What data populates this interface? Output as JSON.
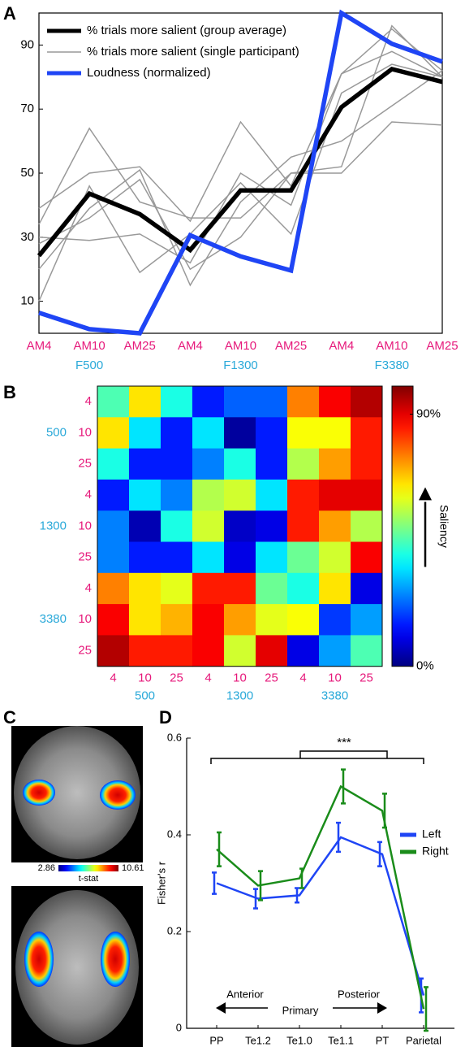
{
  "chart_data": [
    {
      "type": "line",
      "panel": "A",
      "categories": [
        "AM4",
        "AM10",
        "AM25",
        "AM4",
        "AM10",
        "AM25",
        "AM4",
        "AM10",
        "AM25"
      ],
      "category_color": "#e6197b",
      "group_labels": [
        "F500",
        "F1300",
        "F3380"
      ],
      "group_color": "#2aa9d9",
      "ylim": [
        0,
        100
      ],
      "yticks": [
        10,
        30,
        50,
        70,
        90
      ],
      "grid": false,
      "legend": "upper left",
      "series": [
        {
          "name": "% trials more salient (single participant)",
          "color": "#999999",
          "participants": [
            [
              39,
              50,
              52,
              35,
              66,
              46,
              81,
              95,
              82
            ],
            [
              30,
              29,
              31,
              22,
              50,
              40,
              81,
              88,
              80
            ],
            [
              20,
              39,
              51,
              15,
              41,
              55,
              60,
              71,
              82
            ],
            [
              34,
              64,
              41,
              36,
              36,
              50,
              52,
              96,
              80
            ],
            [
              10,
              46,
              19,
              31,
              47,
              31,
              75,
              84,
              80
            ],
            [
              28,
              36,
              48,
              20,
              30,
              50,
              50,
              66,
              65
            ]
          ]
        },
        {
          "name": "% trials more salient (group average)",
          "color": "#000000",
          "values": [
            24.2,
            43.6,
            37.2,
            26,
            44.6,
            44.6,
            70.6,
            82.5,
            78.5
          ]
        },
        {
          "name": "Loudness (normalized)",
          "color": "#1f45f5",
          "values": [
            6.4,
            1.3,
            0,
            30.6,
            24,
            19.6,
            100,
            90.4,
            84.8
          ]
        }
      ]
    },
    {
      "type": "heatmap",
      "panel": "B",
      "colormap": "jet",
      "rows": [
        "4",
        "10",
        "25",
        "4",
        "10",
        "25",
        "4",
        "10",
        "25"
      ],
      "columns": [
        "4",
        "10",
        "25",
        "4",
        "10",
        "25",
        "4",
        "10",
        "25"
      ],
      "category_color": "#e6197b",
      "group_labels": [
        "500",
        "1300",
        "3380"
      ],
      "group_color": "#2aa9d9",
      "z": [
        [
          45,
          65,
          40,
          15,
          22,
          22,
          75,
          88,
          95
        ],
        [
          65,
          35,
          15,
          35,
          3,
          15,
          62,
          62,
          85
        ],
        [
          40,
          15,
          15,
          25,
          40,
          15,
          55,
          72,
          85
        ],
        [
          15,
          35,
          25,
          55,
          58,
          35,
          85,
          90,
          90
        ],
        [
          25,
          5,
          40,
          58,
          7,
          10,
          85,
          72,
          55
        ],
        [
          25,
          15,
          15,
          35,
          10,
          35,
          48,
          58,
          88
        ],
        [
          75,
          65,
          60,
          85,
          85,
          48,
          40,
          65,
          10
        ],
        [
          88,
          65,
          70,
          88,
          72,
          60,
          62,
          18,
          28
        ],
        [
          95,
          85,
          85,
          88,
          58,
          90,
          10,
          28,
          45
        ]
      ],
      "clim": [
        0,
        100
      ],
      "cticks": [
        {
          "value": 90,
          "label": "90%"
        },
        {
          "value": 0,
          "label": "0%"
        }
      ],
      "colorbar_label": "Saliency"
    },
    {
      "type": "line",
      "panel": "D",
      "categories": [
        "PP",
        "Te1.2",
        "Te1.0",
        "Te1.1",
        "PT",
        "Parietal"
      ],
      "category_color": "#000000",
      "ylabel": "Fisher's r",
      "ylim": [
        0,
        0.6
      ],
      "yticks": [
        0,
        0.2,
        0.4,
        0.6
      ],
      "grid": false,
      "legend": "right",
      "annotations": {
        "significance": "***",
        "anterior": "Anterior",
        "primary": "Primary",
        "posterior": "Posterior"
      },
      "series": [
        {
          "name": "Left",
          "color": "#1f45f5",
          "values": [
            0.3,
            0.268,
            0.275,
            0.395,
            0.36,
            0.068
          ],
          "errors": [
            0.022,
            0.02,
            0.015,
            0.03,
            0.025,
            0.035
          ]
        },
        {
          "name": "Right",
          "color": "#1a8c1a",
          "values": [
            0.37,
            0.295,
            0.31,
            0.5,
            0.45,
            0.04
          ],
          "errors": [
            0.035,
            0.03,
            0.02,
            0.035,
            0.035,
            0.045
          ]
        }
      ]
    }
  ],
  "brain_panel": {
    "panel": "C",
    "clim": [
      2.86,
      10.61
    ],
    "colorbar_label": "t-stat"
  }
}
